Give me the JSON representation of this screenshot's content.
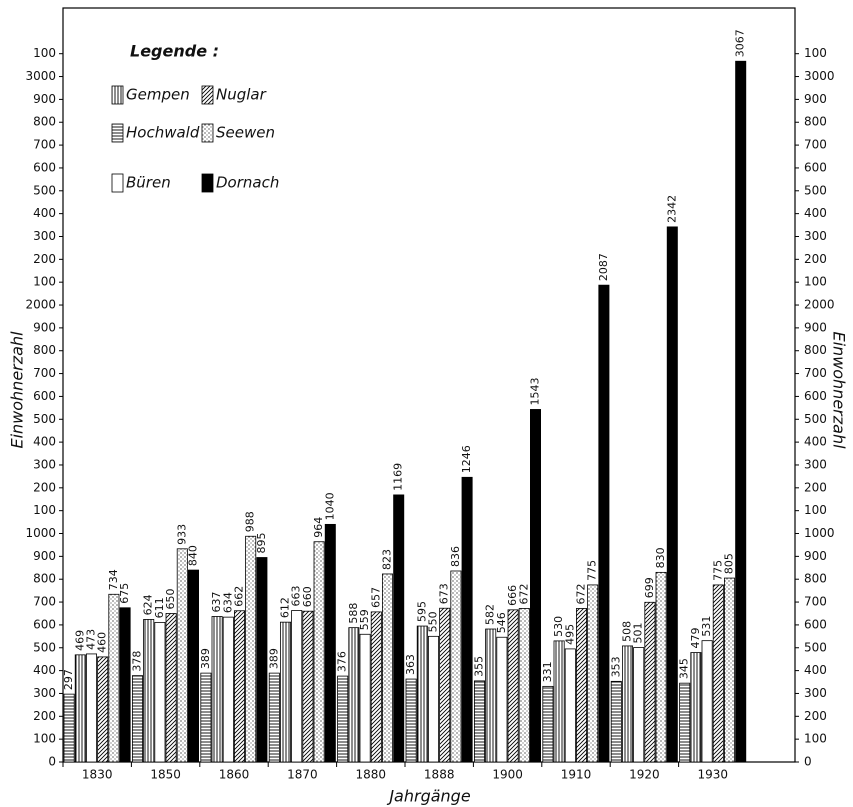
{
  "chart_data": {
    "type": "bar",
    "x_label": "Jahrgänge",
    "y_label": "Einwohnerzahl",
    "legend_title": "Legende :",
    "categories": [
      "1830",
      "1850",
      "1860",
      "1870",
      "1880",
      "1888",
      "1900",
      "1910",
      "1920",
      "1930"
    ],
    "series": [
      {
        "name": "Hochwald",
        "color": "#000000",
        "pattern": "horizontal",
        "values": [
          297,
          378,
          389,
          389,
          376,
          363,
          355,
          331,
          353,
          345
        ]
      },
      {
        "name": "Gempen",
        "color": "#000000",
        "pattern": "vertical",
        "values": [
          469,
          624,
          637,
          612,
          588,
          595,
          582,
          530,
          508,
          479
        ]
      },
      {
        "name": "Büren",
        "color": "#000000",
        "pattern": "none",
        "values": [
          473,
          611,
          634,
          663,
          559,
          550,
          546,
          495,
          501,
          531
        ]
      },
      {
        "name": "Nuglar",
        "color": "#000000",
        "pattern": "diagonal",
        "values": [
          460,
          650,
          662,
          660,
          657,
          673,
          666,
          672,
          699,
          775
        ]
      },
      {
        "name": "Seewen",
        "color": "#000000",
        "pattern": "dots",
        "values": [
          734,
          933,
          988,
          964,
          823,
          836,
          672,
          775,
          830,
          805
        ]
      },
      {
        "name": "Dornach",
        "color": "#000000",
        "pattern": "solid",
        "values": [
          675,
          840,
          895,
          1040,
          1169,
          1246,
          1543,
          2087,
          2342,
          3067
        ]
      }
    ],
    "legend_order": [
      1,
      3,
      0,
      4,
      2,
      5
    ],
    "ylim": [
      0,
      3300
    ],
    "yticks": [
      0,
      100,
      200,
      300,
      400,
      500,
      600,
      700,
      800,
      900,
      1000,
      {
        "value": 1100,
        "label": "100"
      },
      {
        "value": 1200,
        "label": "200"
      },
      {
        "value": 1300,
        "label": "300"
      },
      {
        "value": 1400,
        "label": "400"
      },
      {
        "value": 1500,
        "label": "500"
      },
      {
        "value": 1600,
        "label": "600"
      },
      {
        "value": 1700,
        "label": "700"
      },
      {
        "value": 1800,
        "label": "800"
      },
      {
        "value": 1900,
        "label": "900"
      },
      2000,
      {
        "value": 2100,
        "label": "100"
      },
      {
        "value": 2200,
        "label": "200"
      },
      {
        "value": 2300,
        "label": "300"
      },
      {
        "value": 2400,
        "label": "400"
      },
      {
        "value": 2500,
        "label": "500"
      },
      {
        "value": 2600,
        "label": "600"
      },
      {
        "value": 2700,
        "label": "700"
      },
      {
        "value": 2800,
        "label": "800"
      },
      {
        "value": 2900,
        "label": "900"
      },
      3000,
      {
        "value": 3100,
        "label": "100"
      }
    ],
    "grid": false
  }
}
